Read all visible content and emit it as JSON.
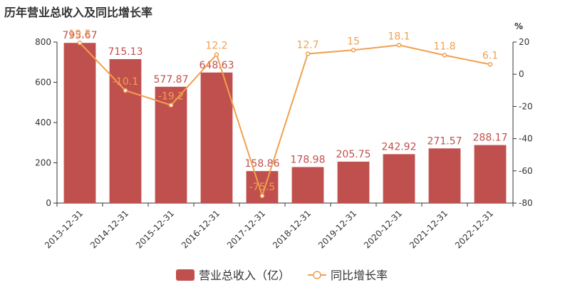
{
  "title": "历年营业总收入及同比增长率",
  "chart_data": {
    "type": "bar",
    "categories": [
      "2013-12-31",
      "2014-12-31",
      "2015-12-31",
      "2016-12-31",
      "2017-12-31",
      "2018-12-31",
      "2019-12-31",
      "2020-12-31",
      "2021-12-31",
      "2022-12-31"
    ],
    "series": [
      {
        "name": "营业总收入（亿）",
        "type": "bar",
        "axis": "left",
        "values": [
          795.67,
          715.13,
          577.87,
          648.63,
          158.86,
          178.98,
          205.75,
          242.92,
          271.57,
          288.17
        ]
      },
      {
        "name": "同比增长率",
        "type": "line",
        "axis": "right",
        "values": [
          19.5,
          -10.1,
          -19.2,
          12.2,
          -75.5,
          12.7,
          15,
          18.1,
          11.8,
          6.1
        ]
      }
    ],
    "left_axis": {
      "ylim": [
        0,
        800
      ],
      "ticks": [
        0,
        200,
        400,
        600,
        800
      ]
    },
    "right_axis": {
      "unit": "%",
      "ylim": [
        -80,
        20
      ],
      "ticks": [
        20,
        0,
        -20,
        -40,
        -60,
        -80
      ]
    },
    "legend": {
      "placement": "bottom"
    },
    "colors": {
      "bar": "#c0504d",
      "line": "#f0a050"
    }
  }
}
